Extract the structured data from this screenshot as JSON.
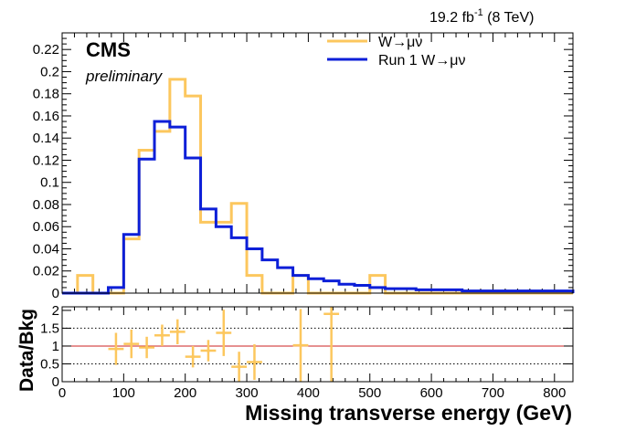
{
  "header": {
    "lumi_value": "19.2 fb",
    "lumi_exp": "-1",
    "energy": " (8 TeV)",
    "experiment": "CMS",
    "status": "preliminary"
  },
  "colors": {
    "wmunu": "#fcc75e",
    "run1": "#0c1fd8",
    "ratio_points": "#fcc75e",
    "unity_line": "#cc2020"
  },
  "chart_data": [
    {
      "type": "step",
      "title": "",
      "xlabel": "",
      "ylabel": "",
      "xlim": [
        0,
        830
      ],
      "ylim": [
        0,
        0.235
      ],
      "yticks": [
        0,
        0.02,
        0.04,
        0.06,
        0.08,
        0.1,
        0.12,
        0.14,
        0.16,
        0.18,
        0.2,
        0.22
      ],
      "ytick_labels": [
        "0",
        "0.02",
        "0.04",
        "0.06",
        "0.08",
        "0.1",
        "0.12",
        "0.14",
        "0.16",
        "0.18",
        "0.2",
        "0.22"
      ],
      "legend": {
        "placement": "top-right"
      },
      "bin_edges": [
        0,
        25,
        50,
        75,
        100,
        125,
        150,
        175,
        200,
        225,
        250,
        275,
        300,
        325,
        350,
        375,
        400,
        425,
        450,
        475,
        500,
        525,
        550,
        575,
        600,
        625,
        650,
        675,
        700,
        725,
        750,
        775,
        800,
        830
      ],
      "series": [
        {
          "name": "W→μν",
          "color_key": "wmunu",
          "values": [
            0,
            0.016,
            0,
            0,
            0.049,
            0.129,
            0.146,
            0.193,
            0.178,
            0.064,
            0.064,
            0.081,
            0.016,
            0,
            0,
            0.016,
            0,
            0,
            0,
            0,
            0.016,
            0,
            0,
            0,
            0,
            0,
            0,
            0,
            0,
            0,
            0,
            0,
            0
          ]
        },
        {
          "name": "Run 1 W→μν",
          "color_key": "run1",
          "values": [
            0,
            0,
            0,
            0.005,
            0.053,
            0.121,
            0.155,
            0.15,
            0.122,
            0.076,
            0.06,
            0.05,
            0.04,
            0.03,
            0.023,
            0.016,
            0.013,
            0.011,
            0.008,
            0.007,
            0.005,
            0.004,
            0.004,
            0.003,
            0.003,
            0.003,
            0.002,
            0.002,
            0.002,
            0.002,
            0.002,
            0.002,
            0.002
          ]
        }
      ]
    },
    {
      "type": "errorbar",
      "xlabel": "Missing transverse energy (GeV)",
      "ylabel": "Data/Bkg",
      "xlim": [
        0,
        830
      ],
      "ylim": [
        0,
        2.1
      ],
      "yticks": [
        0,
        0.5,
        1,
        1.5,
        2
      ],
      "ytick_labels": [
        "0",
        "0.5",
        "1",
        "1.5",
        "2"
      ],
      "xticks": [
        0,
        100,
        200,
        300,
        400,
        500,
        600,
        700,
        800
      ],
      "xtick_labels": [
        "0",
        "100",
        "200",
        "300",
        "400",
        "500",
        "600",
        "700",
        "800"
      ],
      "dotted_lines_y": [
        0.5,
        1.5
      ],
      "reference_line_y": 1,
      "points": [
        {
          "x": 87.5,
          "y": 0.92,
          "xerr": 12.5,
          "yerr": 0.45
        },
        {
          "x": 112.5,
          "y": 1.06,
          "xerr": 12.5,
          "yerr": 0.4
        },
        {
          "x": 137.5,
          "y": 0.96,
          "xerr": 12.5,
          "yerr": 0.3
        },
        {
          "x": 162.5,
          "y": 1.3,
          "xerr": 12.5,
          "yerr": 0.3
        },
        {
          "x": 187.5,
          "y": 1.4,
          "xerr": 12.5,
          "yerr": 0.35
        },
        {
          "x": 212.5,
          "y": 0.7,
          "xerr": 12.5,
          "yerr": 0.3
        },
        {
          "x": 237.5,
          "y": 0.87,
          "xerr": 12.5,
          "yerr": 0.3
        },
        {
          "x": 262.5,
          "y": 1.37,
          "xerr": 12.5,
          "yerr": 0.65
        },
        {
          "x": 287.5,
          "y": 0.42,
          "xerr": 12.5,
          "yerr": 0.42
        },
        {
          "x": 312.5,
          "y": 0.55,
          "xerr": 12.5,
          "yerr": 0.5
        },
        {
          "x": 387.5,
          "y": 1.02,
          "xerr": 12.5,
          "yerr": 1.02
        },
        {
          "x": 437.5,
          "y": 1.9,
          "xerr": 12.5,
          "yerr": 1.9
        }
      ]
    }
  ]
}
